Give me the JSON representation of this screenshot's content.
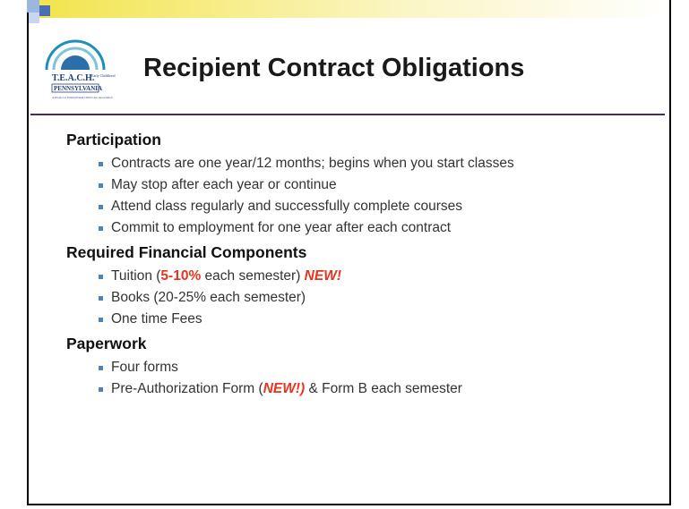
{
  "header": {
    "title": "Recipient Contract Obligations"
  },
  "logo": {
    "name": "T.E.A.C.H.",
    "tag": "Early Childhood",
    "state": "PENNSYLVANIA",
    "note": "A Project of Pennsylvania Child Care Association"
  },
  "sections": [
    {
      "heading": "Participation",
      "bullets": [
        {
          "runs": [
            {
              "text": "Contracts are one year/12 months; begins when you start classes",
              "style": "plain"
            }
          ]
        },
        {
          "runs": [
            {
              "text": "May stop after each year or continue",
              "style": "plain"
            }
          ]
        },
        {
          "runs": [
            {
              "text": "Attend class regularly and successfully complete courses",
              "style": "plain"
            }
          ]
        },
        {
          "runs": [
            {
              "text": "Commit to employment for one year after each contract",
              "style": "plain"
            }
          ]
        }
      ]
    },
    {
      "heading": "Required Financial Components",
      "bullets": [
        {
          "runs": [
            {
              "text": "Tuition (",
              "style": "plain"
            },
            {
              "text": "5-10%",
              "style": "bold-red"
            },
            {
              "text": " each semester) ",
              "style": "plain"
            },
            {
              "text": "NEW!",
              "style": "bold-italic-red"
            }
          ]
        },
        {
          "runs": [
            {
              "text": "Books (20-25% each semester)",
              "style": "plain"
            }
          ]
        },
        {
          "runs": [
            {
              "text": "One time Fees",
              "style": "plain"
            }
          ]
        }
      ]
    },
    {
      "heading": "Paperwork",
      "bullets": [
        {
          "runs": [
            {
              "text": "Four forms",
              "style": "plain"
            }
          ]
        },
        {
          "runs": [
            {
              "text": "Pre-Authorization Form (",
              "style": "plain"
            },
            {
              "text": "NEW!)",
              "style": "bold-italic-red"
            },
            {
              "text": " & Form B each semester",
              "style": "plain"
            }
          ]
        }
      ]
    }
  ]
}
